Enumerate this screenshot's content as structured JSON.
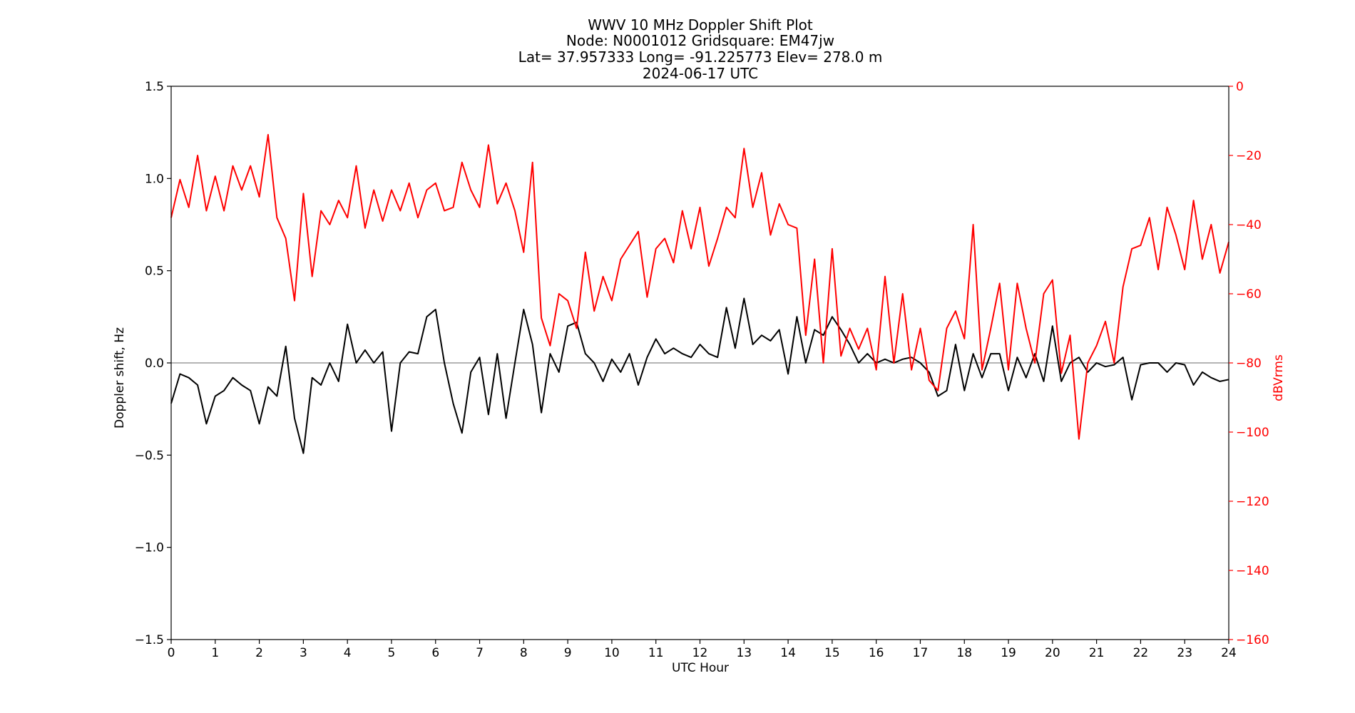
{
  "chart_data": {
    "type": "line",
    "title_lines": [
      "WWV 10 MHz Doppler Shift Plot",
      "Node:  N0001012     Gridsquare:  EM47jw",
      "Lat= 37.957333    Long= -91.225773    Elev= 278.0 m",
      "2024-06-17  UTC"
    ],
    "xlabel": "UTC Hour",
    "ylabel_left": "Doppler shift, Hz",
    "ylabel_right": "dBVrms",
    "xlim": [
      0,
      24
    ],
    "ylim_left": [
      -1.5,
      1.5
    ],
    "ylim_right": [
      -160,
      0
    ],
    "x_ticks": [
      "0",
      "1",
      "2",
      "3",
      "4",
      "5",
      "6",
      "7",
      "8",
      "9",
      "10",
      "11",
      "12",
      "13",
      "14",
      "15",
      "16",
      "17",
      "18",
      "19",
      "20",
      "21",
      "22",
      "23",
      "24"
    ],
    "y_ticks_left": [
      "1.5",
      "1.0",
      "0.5",
      "0.0",
      "−0.5",
      "−1.0",
      "−1.5"
    ],
    "y_ticks_right": [
      "0",
      "−20",
      "−40",
      "−60",
      "−80",
      "−100",
      "−120",
      "−140",
      "−160"
    ],
    "zero_line": 0,
    "colors": {
      "doppler": "#000000",
      "power": "#ff0000",
      "zero_line": "#888888"
    },
    "series": [
      {
        "axis": "left",
        "color": "#000000",
        "x": [
          0,
          0.2,
          0.4,
          0.6,
          0.8,
          1,
          1.2,
          1.4,
          1.6,
          1.8,
          2,
          2.2,
          2.4,
          2.6,
          2.8,
          3,
          3.2,
          3.4,
          3.6,
          3.8,
          4,
          4.2,
          4.4,
          4.6,
          4.8,
          5,
          5.2,
          5.4,
          5.6,
          5.8,
          6,
          6.2,
          6.4,
          6.6,
          6.8,
          7,
          7.2,
          7.4,
          7.6,
          7.8,
          8,
          8.2,
          8.4,
          8.6,
          8.8,
          9,
          9.2,
          9.4,
          9.6,
          9.8,
          10,
          10.2,
          10.4,
          10.6,
          10.8,
          11,
          11.2,
          11.4,
          11.6,
          11.8,
          12,
          12.2,
          12.4,
          12.6,
          12.8,
          13,
          13.2,
          13.4,
          13.6,
          13.8,
          14,
          14.2,
          14.4,
          14.6,
          14.8,
          15,
          15.2,
          15.4,
          15.6,
          15.8,
          16,
          16.2,
          16.4,
          16.6,
          16.8,
          17,
          17.2,
          17.4,
          17.6,
          17.8,
          18,
          18.2,
          18.4,
          18.6,
          18.8,
          19,
          19.2,
          19.4,
          19.6,
          19.8,
          20,
          20.2,
          20.4,
          20.6,
          20.8,
          21,
          21.2,
          21.4,
          21.6,
          21.8,
          22,
          22.2,
          22.4,
          22.6,
          22.8,
          23,
          23.2,
          23.4,
          23.6,
          23.8,
          24
        ],
        "y": [
          -0.22,
          -0.06,
          -0.08,
          -0.12,
          -0.33,
          -0.18,
          -0.15,
          -0.08,
          -0.12,
          -0.15,
          -0.33,
          -0.13,
          -0.18,
          0.09,
          -0.3,
          -0.49,
          -0.08,
          -0.12,
          0.0,
          -0.1,
          0.21,
          0.0,
          0.07,
          0.0,
          0.06,
          -0.37,
          0.0,
          0.06,
          0.05,
          0.25,
          0.29,
          0.0,
          -0.22,
          -0.38,
          -0.05,
          0.03,
          -0.28,
          0.05,
          -0.3,
          0.0,
          0.29,
          0.1,
          -0.27,
          0.05,
          -0.05,
          0.2,
          0.22,
          0.05,
          0.0,
          -0.1,
          0.02,
          -0.05,
          0.05,
          -0.12,
          0.03,
          0.13,
          0.05,
          0.08,
          0.05,
          0.03,
          0.1,
          0.05,
          0.03,
          0.3,
          0.08,
          0.35,
          0.1,
          0.15,
          0.12,
          0.18,
          -0.06,
          0.25,
          0.0,
          0.18,
          0.15,
          0.25,
          0.18,
          0.1,
          0.0,
          0.05,
          0.0,
          0.02,
          0.0,
          0.02,
          0.03,
          0.0,
          -0.05,
          -0.18,
          -0.15,
          0.1,
          -0.15,
          0.05,
          -0.08,
          0.05,
          0.05,
          -0.15,
          0.03,
          -0.08,
          0.05,
          -0.1,
          0.2,
          -0.1,
          0.0,
          0.03,
          -0.05,
          0.0,
          -0.02,
          -0.01,
          0.03,
          -0.2,
          -0.01,
          0.0,
          0.0,
          -0.05,
          0.0,
          -0.01,
          -0.12,
          -0.05,
          -0.08,
          -0.1,
          -0.09
        ]
      },
      {
        "axis": "right",
        "color": "#ff0000",
        "x": [
          0,
          0.2,
          0.4,
          0.6,
          0.8,
          1,
          1.2,
          1.4,
          1.6,
          1.8,
          2,
          2.2,
          2.4,
          2.6,
          2.8,
          3,
          3.2,
          3.4,
          3.6,
          3.8,
          4,
          4.2,
          4.4,
          4.6,
          4.8,
          5,
          5.2,
          5.4,
          5.6,
          5.8,
          6,
          6.2,
          6.4,
          6.6,
          6.8,
          7,
          7.2,
          7.4,
          7.6,
          7.8,
          8,
          8.2,
          8.4,
          8.6,
          8.8,
          9,
          9.2,
          9.4,
          9.6,
          9.8,
          10,
          10.2,
          10.4,
          10.6,
          10.8,
          11,
          11.2,
          11.4,
          11.6,
          11.8,
          12,
          12.2,
          12.4,
          12.6,
          12.8,
          13,
          13.2,
          13.4,
          13.6,
          13.8,
          14,
          14.2,
          14.4,
          14.6,
          14.8,
          15,
          15.2,
          15.4,
          15.6,
          15.8,
          16,
          16.2,
          16.4,
          16.6,
          16.8,
          17,
          17.2,
          17.4,
          17.6,
          17.8,
          18,
          18.2,
          18.4,
          18.6,
          18.8,
          19,
          19.2,
          19.4,
          19.6,
          19.8,
          20,
          20.2,
          20.4,
          20.6,
          20.8,
          21,
          21.2,
          21.4,
          21.6,
          21.8,
          22,
          22.2,
          22.4,
          22.6,
          22.8,
          23,
          23.2,
          23.4,
          23.6,
          23.8,
          24
        ],
        "y": [
          -38,
          -27,
          -35,
          -20,
          -36,
          -26,
          -36,
          -23,
          -30,
          -23,
          -32,
          -14,
          -38,
          -44,
          -62,
          -31,
          -55,
          -36,
          -40,
          -33,
          -38,
          -23,
          -41,
          -30,
          -39,
          -30,
          -36,
          -28,
          -38,
          -30,
          -28,
          -36,
          -35,
          -22,
          -30,
          -35,
          -17,
          -34,
          -28,
          -36,
          -48,
          -22,
          -67,
          -75,
          -60,
          -62,
          -70,
          -48,
          -65,
          -55,
          -62,
          -50,
          -46,
          -42,
          -61,
          -47,
          -44,
          -51,
          -36,
          -47,
          -35,
          -52,
          -44,
          -35,
          -38,
          -18,
          -35,
          -25,
          -43,
          -34,
          -40,
          -41,
          -72,
          -50,
          -80,
          -47,
          -78,
          -70,
          -76,
          -70,
          -82,
          -55,
          -80,
          -60,
          -82,
          -70,
          -85,
          -88,
          -70,
          -65,
          -73,
          -40,
          -82,
          -70,
          -57,
          -82,
          -57,
          -70,
          -80,
          -60,
          -56,
          -83,
          -72,
          -102,
          -80,
          -75,
          -68,
          -80,
          -58,
          -47,
          -46,
          -38,
          -53,
          -35,
          -43,
          -53,
          -33,
          -50,
          -40,
          -54,
          -45
        ]
      }
    ]
  }
}
